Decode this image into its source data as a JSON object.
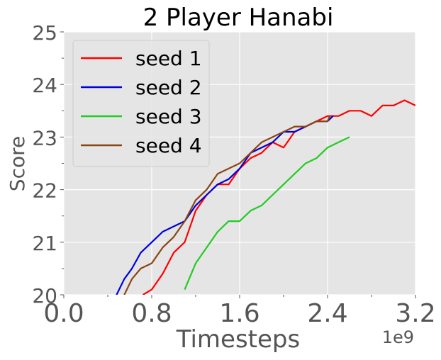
{
  "chart_data": {
    "type": "line",
    "title": "2 Player Hanabi",
    "xlabel": "Timesteps",
    "ylabel": "Score",
    "x_scale_label": "1e9",
    "xlim": [
      0.0,
      3.2
    ],
    "ylim": [
      20,
      25
    ],
    "x_ticks": [
      "0.0",
      "0.8",
      "1.6",
      "2.4",
      "3.2"
    ],
    "y_ticks": [
      "20",
      "21",
      "22",
      "23",
      "24",
      "25"
    ],
    "grid": true,
    "legend_position": "top-left",
    "series": [
      {
        "name": "seed 1",
        "color": "#ff0000",
        "x": [
          0.72,
          0.8,
          0.9,
          1.0,
          1.1,
          1.2,
          1.3,
          1.4,
          1.5,
          1.6,
          1.7,
          1.8,
          1.9,
          2.0,
          2.1,
          2.2,
          2.3,
          2.4,
          2.5,
          2.6,
          2.7,
          2.8,
          2.9,
          3.0,
          3.1,
          3.2
        ],
        "y": [
          20.0,
          20.1,
          20.4,
          20.8,
          21.0,
          21.6,
          21.9,
          22.1,
          22.1,
          22.4,
          22.6,
          22.7,
          22.9,
          22.8,
          23.1,
          23.2,
          23.3,
          23.4,
          23.4,
          23.5,
          23.5,
          23.4,
          23.6,
          23.6,
          23.7,
          23.6
        ]
      },
      {
        "name": "seed 2",
        "color": "#0000dd",
        "x": [
          0.48,
          0.55,
          0.62,
          0.7,
          0.8,
          0.9,
          1.0,
          1.1,
          1.2,
          1.3,
          1.4,
          1.5,
          1.6,
          1.7,
          1.8,
          1.9,
          2.0,
          2.1,
          2.2,
          2.3,
          2.4,
          2.45
        ],
        "y": [
          20.0,
          20.3,
          20.5,
          20.8,
          21.0,
          21.2,
          21.3,
          21.4,
          21.7,
          21.9,
          22.1,
          22.2,
          22.4,
          22.7,
          22.8,
          22.9,
          23.1,
          23.1,
          23.2,
          23.3,
          23.3,
          23.4
        ]
      },
      {
        "name": "seed 3",
        "color": "#22cc22",
        "x": [
          1.1,
          1.2,
          1.3,
          1.4,
          1.5,
          1.6,
          1.7,
          1.8,
          1.9,
          2.0,
          2.1,
          2.2,
          2.3,
          2.4,
          2.5,
          2.6
        ],
        "y": [
          20.1,
          20.6,
          20.9,
          21.2,
          21.4,
          21.4,
          21.6,
          21.7,
          21.9,
          22.1,
          22.3,
          22.5,
          22.6,
          22.8,
          22.9,
          23.0
        ]
      },
      {
        "name": "seed 4",
        "color": "#8b4513",
        "x": [
          0.55,
          0.62,
          0.7,
          0.8,
          0.9,
          1.0,
          1.1,
          1.2,
          1.3,
          1.4,
          1.5,
          1.6,
          1.7,
          1.8,
          1.9,
          2.0,
          2.1,
          2.2,
          2.3,
          2.4,
          2.42
        ],
        "y": [
          20.0,
          20.3,
          20.5,
          20.6,
          20.9,
          21.1,
          21.4,
          21.8,
          22.0,
          22.3,
          22.4,
          22.5,
          22.7,
          22.9,
          23.0,
          23.1,
          23.2,
          23.2,
          23.3,
          23.3,
          23.4
        ]
      }
    ]
  }
}
